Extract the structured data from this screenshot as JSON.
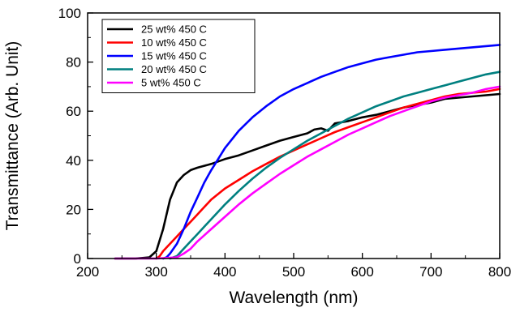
{
  "chart_data": {
    "type": "line",
    "title": "",
    "xlabel": "Wavelength (nm)",
    "ylabel": "Transmittance (Arb. Unit)",
    "xlim": [
      200,
      800
    ],
    "ylim": [
      0,
      100
    ],
    "xticks": [
      200,
      300,
      400,
      500,
      600,
      700,
      800
    ],
    "yticks": [
      0,
      20,
      40,
      60,
      80,
      100
    ],
    "grid": false,
    "legend_position": "top-left",
    "series": [
      {
        "name": "25 wt% 450 C",
        "color": "#000000",
        "points": [
          [
            240,
            0
          ],
          [
            270,
            0
          ],
          [
            290,
            0.5
          ],
          [
            300,
            3
          ],
          [
            310,
            12
          ],
          [
            320,
            24
          ],
          [
            330,
            31
          ],
          [
            340,
            34
          ],
          [
            350,
            36
          ],
          [
            360,
            37
          ],
          [
            380,
            38.5
          ],
          [
            400,
            40.5
          ],
          [
            420,
            42
          ],
          [
            440,
            44
          ],
          [
            460,
            46
          ],
          [
            480,
            48
          ],
          [
            500,
            49.5
          ],
          [
            520,
            51
          ],
          [
            530,
            52.5
          ],
          [
            540,
            53
          ],
          [
            550,
            52
          ],
          [
            560,
            55
          ],
          [
            580,
            56
          ],
          [
            600,
            57.5
          ],
          [
            620,
            58.5
          ],
          [
            640,
            60
          ],
          [
            660,
            61.5
          ],
          [
            680,
            62.5
          ],
          [
            700,
            63.5
          ],
          [
            720,
            65
          ],
          [
            740,
            65.5
          ],
          [
            760,
            66
          ],
          [
            780,
            66.5
          ],
          [
            800,
            67
          ]
        ]
      },
      {
        "name": "10 wt% 450 C",
        "color": "#ff0000",
        "points": [
          [
            300,
            0
          ],
          [
            305,
            1
          ],
          [
            310,
            3
          ],
          [
            320,
            6
          ],
          [
            330,
            9
          ],
          [
            340,
            12
          ],
          [
            350,
            15
          ],
          [
            360,
            18
          ],
          [
            370,
            21
          ],
          [
            380,
            24
          ],
          [
            400,
            28.5
          ],
          [
            420,
            32
          ],
          [
            440,
            35.5
          ],
          [
            460,
            38.5
          ],
          [
            480,
            41.5
          ],
          [
            500,
            44
          ],
          [
            520,
            46.5
          ],
          [
            540,
            49
          ],
          [
            560,
            51.5
          ],
          [
            580,
            53.5
          ],
          [
            600,
            55.5
          ],
          [
            620,
            57.5
          ],
          [
            640,
            59.5
          ],
          [
            660,
            61.5
          ],
          [
            680,
            63
          ],
          [
            700,
            64.5
          ],
          [
            720,
            66
          ],
          [
            740,
            67
          ],
          [
            760,
            67.5
          ],
          [
            780,
            68
          ],
          [
            800,
            69
          ]
        ]
      },
      {
        "name": "15 wt% 450 C",
        "color": "#0000ff",
        "points": [
          [
            310,
            0
          ],
          [
            315,
            0.5
          ],
          [
            320,
            2
          ],
          [
            330,
            6
          ],
          [
            340,
            12
          ],
          [
            350,
            19
          ],
          [
            360,
            25
          ],
          [
            370,
            31
          ],
          [
            380,
            36
          ],
          [
            390,
            40.5
          ],
          [
            400,
            45
          ],
          [
            420,
            52
          ],
          [
            440,
            57.5
          ],
          [
            460,
            62
          ],
          [
            480,
            66
          ],
          [
            500,
            69
          ],
          [
            520,
            71.5
          ],
          [
            540,
            74
          ],
          [
            560,
            76
          ],
          [
            580,
            78
          ],
          [
            600,
            79.5
          ],
          [
            620,
            81
          ],
          [
            640,
            82
          ],
          [
            660,
            83
          ],
          [
            680,
            84
          ],
          [
            700,
            84.5
          ],
          [
            720,
            85
          ],
          [
            740,
            85.5
          ],
          [
            760,
            86
          ],
          [
            780,
            86.5
          ],
          [
            800,
            87
          ]
        ]
      },
      {
        "name": "20 wt% 450 C",
        "color": "#008080",
        "points": [
          [
            320,
            0
          ],
          [
            330,
            1
          ],
          [
            340,
            4
          ],
          [
            350,
            7
          ],
          [
            360,
            10
          ],
          [
            370,
            13
          ],
          [
            380,
            16
          ],
          [
            400,
            22
          ],
          [
            420,
            27.5
          ],
          [
            440,
            32.5
          ],
          [
            460,
            37
          ],
          [
            480,
            41
          ],
          [
            500,
            44.5
          ],
          [
            520,
            48
          ],
          [
            540,
            51
          ],
          [
            560,
            54
          ],
          [
            580,
            57
          ],
          [
            600,
            59.5
          ],
          [
            620,
            62
          ],
          [
            640,
            64
          ],
          [
            660,
            66
          ],
          [
            680,
            67.5
          ],
          [
            700,
            69
          ],
          [
            720,
            70.5
          ],
          [
            740,
            72
          ],
          [
            760,
            73.5
          ],
          [
            780,
            75
          ],
          [
            800,
            76
          ]
        ]
      },
      {
        "name": "5 wt% 450 C",
        "color": "#ff00ff",
        "points": [
          [
            240,
            0
          ],
          [
            300,
            0
          ],
          [
            330,
            0.5
          ],
          [
            340,
            2
          ],
          [
            350,
            4
          ],
          [
            360,
            7
          ],
          [
            380,
            12
          ],
          [
            400,
            17
          ],
          [
            420,
            22
          ],
          [
            440,
            26.5
          ],
          [
            460,
            30.5
          ],
          [
            480,
            34.5
          ],
          [
            500,
            38
          ],
          [
            520,
            41.5
          ],
          [
            540,
            44.5
          ],
          [
            560,
            47.5
          ],
          [
            580,
            50.5
          ],
          [
            600,
            53
          ],
          [
            620,
            55.5
          ],
          [
            640,
            58
          ],
          [
            660,
            60
          ],
          [
            680,
            62
          ],
          [
            700,
            64
          ],
          [
            720,
            65.5
          ],
          [
            740,
            66.5
          ],
          [
            760,
            67.5
          ],
          [
            780,
            69
          ],
          [
            800,
            70
          ]
        ]
      }
    ]
  }
}
